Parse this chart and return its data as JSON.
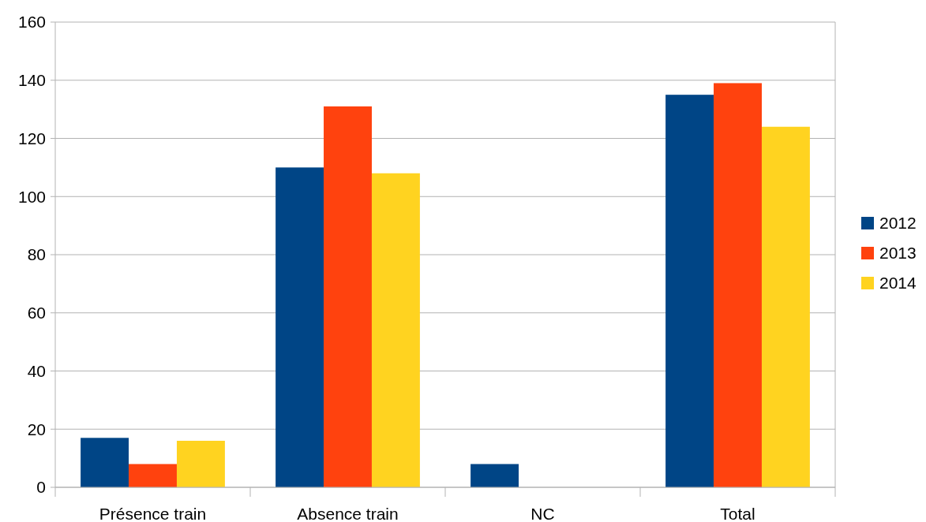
{
  "chart_data": {
    "type": "bar",
    "categories": [
      "Présence train",
      "Absence train",
      "NC",
      "Total"
    ],
    "series": [
      {
        "name": "2012",
        "color": "#004586",
        "values": [
          17,
          110,
          8,
          135
        ]
      },
      {
        "name": "2013",
        "color": "#ff420e",
        "values": [
          8,
          131,
          0,
          139
        ]
      },
      {
        "name": "2014",
        "color": "#ffd320",
        "values": [
          16,
          108,
          0,
          124
        ]
      }
    ],
    "ylim": [
      0,
      160
    ],
    "yticks": [
      0,
      20,
      40,
      60,
      80,
      100,
      120,
      140,
      160
    ],
    "grid": "y",
    "legend": "right"
  }
}
